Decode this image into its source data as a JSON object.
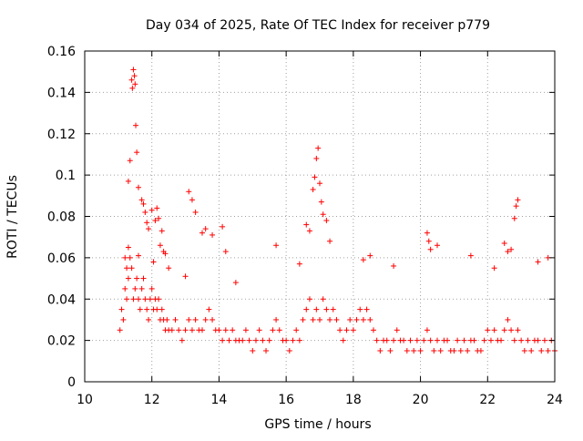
{
  "chart_data": {
    "type": "scatter",
    "title": "Day 034 of 2025, Rate Of TEC Index for receiver p779",
    "xlabel": "GPS time / hours",
    "ylabel": "ROTI / TECUs",
    "xlim": [
      10,
      24
    ],
    "ylim": [
      0,
      0.16
    ],
    "x_ticks": [
      10,
      12,
      14,
      16,
      18,
      20,
      22,
      24
    ],
    "x_tick_labels": [
      "10",
      "12",
      "14",
      "16",
      "18",
      "20",
      "22",
      "24"
    ],
    "y_ticks": [
      0,
      0.02,
      0.04,
      0.06,
      0.08,
      0.1,
      0.12,
      0.14,
      0.16
    ],
    "y_tick_labels": [
      "0",
      "0.02",
      "0.04",
      "0.06",
      "0.08",
      "0.1",
      "0.12",
      "0.14",
      "0.16"
    ],
    "grid": true,
    "marker": "+",
    "marker_color": "#ff0000",
    "series": [
      {
        "name": "ROTI",
        "x": [
          11.05,
          11.1,
          11.15,
          11.2,
          11.25,
          11.3,
          11.35,
          11.4,
          11.45,
          11.5,
          11.55,
          11.6,
          11.65,
          11.7,
          11.75,
          11.8,
          11.85,
          11.9,
          11.95,
          12.0,
          12.05,
          12.1,
          12.15,
          12.2,
          12.25,
          12.3,
          12.35,
          12.4,
          12.45,
          12.5,
          12.6,
          12.7,
          12.8,
          12.9,
          13.0,
          13.1,
          13.2,
          13.3,
          13.4,
          13.5,
          13.6,
          13.7,
          13.8,
          13.9,
          14.0,
          14.1,
          14.2,
          14.3,
          14.4,
          14.5,
          14.6,
          14.7,
          14.8,
          14.9,
          15.0,
          15.1,
          15.2,
          15.3,
          15.4,
          15.5,
          15.6,
          15.7,
          15.8,
          15.9,
          16.0,
          16.1,
          16.2,
          16.3,
          16.4,
          16.5,
          16.6,
          16.7,
          16.8,
          16.9,
          17.0,
          17.1,
          17.2,
          17.3,
          17.4,
          17.5,
          17.6,
          17.7,
          17.8,
          17.9,
          18.0,
          18.1,
          18.2,
          18.3,
          18.4,
          18.5,
          18.6,
          18.7,
          18.8,
          18.9,
          19.0,
          19.1,
          19.2,
          19.3,
          19.4,
          19.5,
          19.6,
          19.7,
          19.8,
          19.9,
          20.0,
          20.1,
          20.2,
          20.3,
          20.4,
          20.5,
          20.6,
          20.7,
          20.8,
          20.9,
          21.0,
          21.1,
          21.2,
          21.3,
          21.4,
          21.5,
          21.6,
          21.7,
          21.8,
          21.9,
          22.0,
          22.1,
          22.2,
          22.3,
          22.4,
          22.5,
          22.6,
          22.7,
          22.8,
          22.9,
          23.0,
          23.1,
          23.2,
          23.3,
          23.4,
          23.5,
          23.6,
          23.7,
          23.8,
          23.9,
          24.0,
          11.4,
          11.42,
          11.45,
          11.48,
          11.5,
          11.52,
          11.55,
          11.35,
          11.3,
          11.6,
          11.7,
          11.75,
          11.8,
          11.85,
          11.9,
          12.0,
          12.1,
          12.15,
          12.2,
          12.25,
          12.3,
          12.35,
          12.4,
          13.1,
          13.2,
          13.3,
          13.5,
          13.6,
          13.8,
          14.1,
          14.2,
          16.6,
          16.7,
          16.8,
          16.85,
          16.9,
          16.95,
          17.0,
          17.05,
          17.1,
          17.2,
          17.3,
          20.2,
          20.25,
          20.3,
          22.5,
          22.6,
          22.7,
          22.8,
          22.85,
          22.9,
          11.2,
          11.25,
          11.3,
          11.6,
          12.05,
          12.5,
          13.0,
          14.5,
          15.7,
          16.4,
          18.3,
          18.5,
          19.2,
          20.5,
          21.5,
          22.2,
          23.5,
          23.8
        ],
        "y": [
          0.025,
          0.035,
          0.03,
          0.045,
          0.04,
          0.05,
          0.06,
          0.055,
          0.04,
          0.045,
          0.05,
          0.04,
          0.035,
          0.045,
          0.05,
          0.04,
          0.035,
          0.03,
          0.04,
          0.045,
          0.035,
          0.04,
          0.035,
          0.04,
          0.03,
          0.035,
          0.03,
          0.025,
          0.03,
          0.025,
          0.025,
          0.03,
          0.025,
          0.02,
          0.025,
          0.03,
          0.025,
          0.03,
          0.025,
          0.025,
          0.03,
          0.035,
          0.03,
          0.025,
          0.025,
          0.02,
          0.025,
          0.02,
          0.025,
          0.02,
          0.02,
          0.02,
          0.025,
          0.02,
          0.015,
          0.02,
          0.025,
          0.02,
          0.015,
          0.02,
          0.025,
          0.03,
          0.025,
          0.02,
          0.02,
          0.015,
          0.02,
          0.025,
          0.02,
          0.03,
          0.035,
          0.04,
          0.03,
          0.035,
          0.03,
          0.04,
          0.035,
          0.03,
          0.035,
          0.03,
          0.025,
          0.02,
          0.025,
          0.03,
          0.025,
          0.03,
          0.035,
          0.03,
          0.035,
          0.03,
          0.025,
          0.02,
          0.015,
          0.02,
          0.02,
          0.015,
          0.02,
          0.025,
          0.02,
          0.02,
          0.015,
          0.02,
          0.015,
          0.02,
          0.015,
          0.02,
          0.025,
          0.02,
          0.015,
          0.02,
          0.015,
          0.02,
          0.02,
          0.015,
          0.015,
          0.02,
          0.015,
          0.02,
          0.015,
          0.02,
          0.02,
          0.015,
          0.015,
          0.02,
          0.025,
          0.02,
          0.025,
          0.02,
          0.02,
          0.025,
          0.03,
          0.025,
          0.02,
          0.025,
          0.02,
          0.015,
          0.02,
          0.015,
          0.02,
          0.02,
          0.015,
          0.02,
          0.015,
          0.02,
          0.015,
          0.146,
          0.142,
          0.151,
          0.148,
          0.144,
          0.124,
          0.111,
          0.107,
          0.097,
          0.094,
          0.088,
          0.086,
          0.082,
          0.077,
          0.074,
          0.083,
          0.078,
          0.084,
          0.079,
          0.066,
          0.073,
          0.063,
          0.062,
          0.092,
          0.088,
          0.082,
          0.072,
          0.074,
          0.071,
          0.075,
          0.063,
          0.076,
          0.073,
          0.093,
          0.099,
          0.108,
          0.113,
          0.096,
          0.087,
          0.081,
          0.078,
          0.068,
          0.072,
          0.068,
          0.064,
          0.067,
          0.063,
          0.064,
          0.079,
          0.085,
          0.088,
          0.06,
          0.055,
          0.065,
          0.061,
          0.058,
          0.055,
          0.051,
          0.048,
          0.066,
          0.057,
          0.059,
          0.061,
          0.056,
          0.066,
          0.061,
          0.055,
          0.058,
          0.06
        ]
      }
    ]
  }
}
